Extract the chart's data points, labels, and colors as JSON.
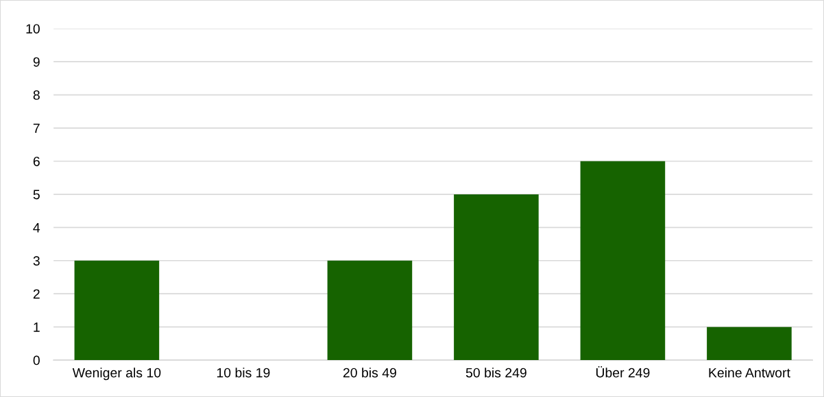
{
  "chart_data": {
    "type": "bar",
    "categories": [
      "Weniger als 10",
      "10 bis 19",
      "20 bis 49",
      "50 bis 249",
      "Über 249",
      "Keine Antwort"
    ],
    "values": [
      3,
      0,
      3,
      5,
      6,
      1
    ],
    "color": "#166300",
    "ylim": [
      0,
      10
    ],
    "yticks": [
      0,
      1,
      2,
      3,
      4,
      5,
      6,
      7,
      8,
      9,
      10
    ],
    "grid": "y"
  }
}
